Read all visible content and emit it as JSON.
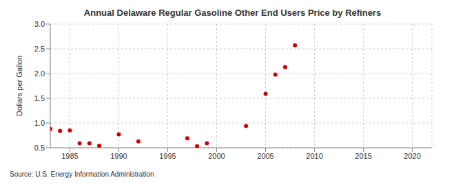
{
  "chart_data": {
    "type": "scatter",
    "title": "Annual Delaware Regular Gasoline Other End Users Price by Refiners",
    "y_label": "Dollars per Gallon",
    "source": "Source: U.S. Energy Information Administration",
    "x": [
      1983,
      1984,
      1985,
      1986,
      1987,
      1988,
      1990,
      1992,
      1997,
      1998,
      1999,
      2003,
      2005,
      2006,
      2007,
      2008
    ],
    "values": [
      0.88,
      0.84,
      0.85,
      0.59,
      0.59,
      0.54,
      0.77,
      0.63,
      0.69,
      0.53,
      0.59,
      0.94,
      1.59,
      1.98,
      2.13,
      2.57
    ],
    "color": "#cc0000",
    "marker": "circle",
    "xlim": [
      1983,
      2022
    ],
    "xticks": [
      1985,
      1990,
      1995,
      2000,
      2005,
      2010,
      2015,
      2020
    ],
    "ylim": [
      0.5,
      3.0
    ],
    "yticks": [
      0.5,
      {
        "value": 1,
        "label": "1.0"
      },
      1.5,
      {
        "value": 2,
        "label": "2.0"
      },
      2.5,
      {
        "value": 3,
        "label": "3.0"
      }
    ],
    "grid": true
  }
}
